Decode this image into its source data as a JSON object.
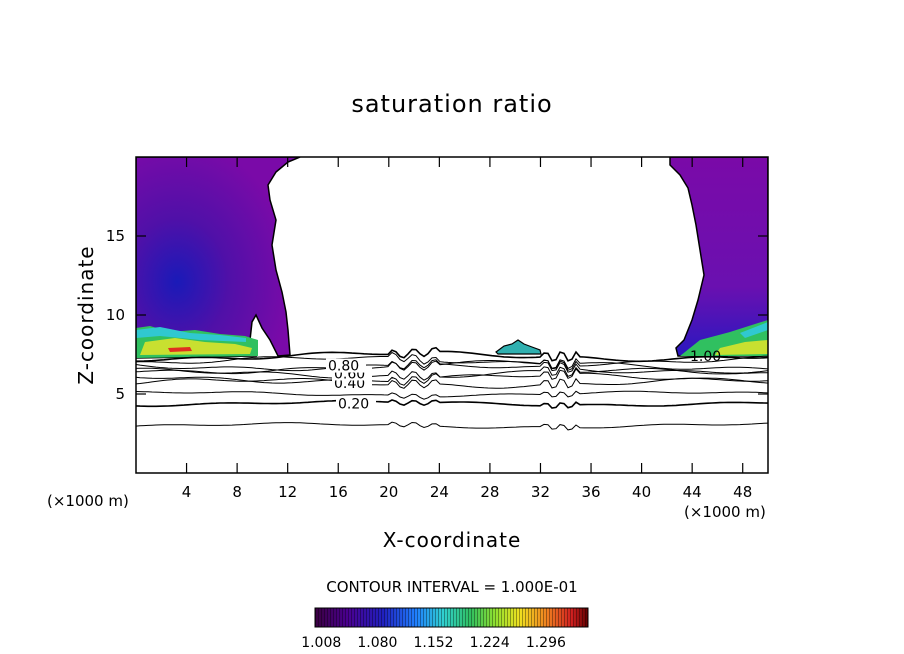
{
  "chart_data": {
    "type": "heatmap",
    "title": "saturation ratio",
    "xlabel": "X-coordinate",
    "ylabel": "Z-coordinate",
    "x_unit_left": "(×1000 m)",
    "x_unit_right": "(×1000 m)",
    "xlim": [
      0,
      50
    ],
    "ylim": [
      0,
      20
    ],
    "x_ticks": [
      4,
      8,
      12,
      16,
      20,
      24,
      28,
      32,
      36,
      40,
      44,
      48
    ],
    "x_tick_labels": [
      "4",
      "8",
      "12",
      "16",
      "20",
      "24",
      "28",
      "32",
      "36",
      "40",
      "44",
      "48"
    ],
    "y_ticks": [
      5,
      10,
      15
    ],
    "y_tick_labels": [
      "5",
      "10",
      "15"
    ],
    "contour_interval_text": "CONTOUR INTERVAL = 1.000E-01",
    "contour_levels": [
      {
        "label": "0.20",
        "z": 4.4
      },
      {
        "label": "0.40",
        "z": 5.7
      },
      {
        "label": "0.60",
        "z": 6.3
      },
      {
        "label": "0.80",
        "z": 6.8
      },
      {
        "label": "1.00",
        "z": 7.4
      }
    ],
    "unlabeled_contour_z": [
      3.0,
      5.0,
      6.0,
      6.6,
      7.1
    ],
    "colorbar": {
      "min": 1.0,
      "max": 1.35,
      "tick_labels": [
        "1.008",
        "1.080",
        "1.152",
        "1.224",
        "1.296"
      ],
      "colors": [
        "#3a0040",
        "#4a0090",
        "#2020c0",
        "#2080ff",
        "#30d0d0",
        "#30c060",
        "#90e030",
        "#f0e020",
        "#f08020",
        "#d02020",
        "#600000"
      ]
    },
    "supersaturated_regions": [
      {
        "name": "left",
        "x_range": [
          0,
          12
        ],
        "z_range": [
          7.5,
          20
        ]
      },
      {
        "name": "center",
        "x_range": [
          28,
          32
        ],
        "z_range": [
          7.5,
          8.3
        ]
      },
      {
        "name": "right",
        "x_range": [
          43,
          50
        ],
        "z_range": [
          7.5,
          20
        ]
      }
    ]
  }
}
